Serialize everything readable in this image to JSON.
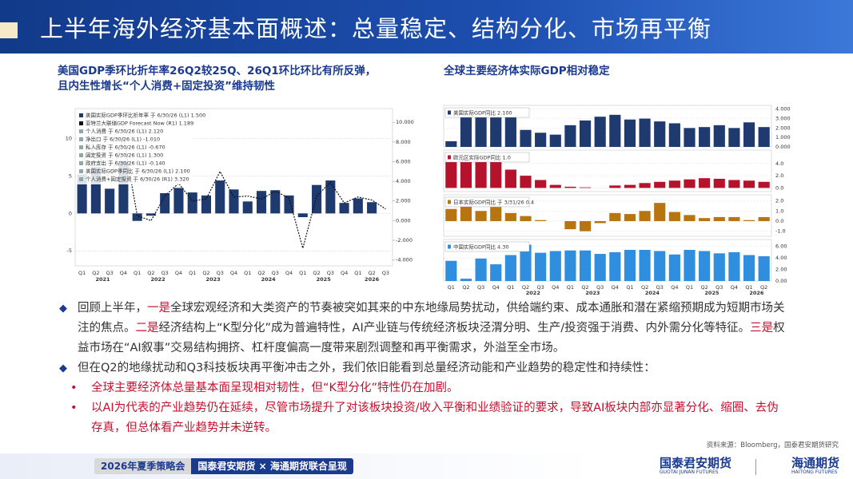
{
  "header": {
    "title": "上半年海外经济基本面概述：总量稳定、结构分化、市场再平衡"
  },
  "left_chart": {
    "type": "bar",
    "title": [
      "美国GDP季环比折年率26Q2较25Q、26Q1环比环比有所反弹，",
      "且内生性增长“个人消费+固定投资”维持韧性"
    ],
    "categories": [
      {
        "year": "2021",
        "quarters": [
          "Q1",
          "Q2",
          "Q3",
          "Q4"
        ]
      },
      {
        "year": "2022",
        "quarters": [
          "Q1",
          "Q2",
          "Q3",
          "Q4"
        ]
      },
      {
        "year": "2023",
        "quarters": [
          "Q1",
          "Q2",
          "Q3",
          "Q4"
        ]
      },
      {
        "year": "2024",
        "quarters": [
          "Q1",
          "Q2",
          "Q3",
          "Q4"
        ]
      },
      {
        "year": "2025",
        "quarters": [
          "Q1",
          "Q2",
          "Q3",
          "Q4"
        ]
      },
      {
        "year": "2026",
        "quarters": [
          "Q1",
          "Q2",
          "Q3"
        ]
      }
    ],
    "series": [
      {
        "name": "美国实际GDP季环比折年率 于 6/30/26 (L1) 1.500",
        "color": "#1f3a6e",
        "values": [
          5.2,
          6.2,
          3.3,
          7.0,
          -1.0,
          -0.3,
          2.7,
          3.4,
          2.8,
          2.4,
          4.4,
          3.2,
          1.6,
          3.0,
          3.1,
          2.4,
          -0.5,
          3.8,
          4.4,
          1.4,
          2.0,
          1.5,
          null
        ]
      },
      {
        "name": "亚特兰大联储GDP Forecast Now (R1) 1.189",
        "color": "#111111",
        "axis": "y2",
        "values": [
          6.0,
          7.5,
          4.0,
          8.5,
          0.5,
          0.0,
          2.5,
          3.8,
          2.0,
          2.2,
          5.0,
          2.4,
          2.5,
          2.2,
          3.0,
          2.3,
          -2.8,
          2.5,
          3.9,
          1.8,
          2.4,
          2.1,
          1.189
        ]
      }
    ],
    "legend_extra": [
      "个人消费 于 6/30/26 (L1) 2.120",
      "净出口 于 6/30/26 (L1) -1.010",
      "私人库存 于 6/30/26 (L1) -0.670",
      "固定投资 于 6/30/26 (L1) 1.300",
      "政府支出 于 6/30/26 (L1) -0.140",
      "美国实际GDP季同比 于 6/30/26 (L1) 2.100",
      "个人消费+固定投资 于 6/30/26 (R1) 3.320"
    ],
    "ylim": [
      -7,
      14
    ],
    "yticks": [
      -5,
      0,
      5,
      10
    ],
    "y2lim": [
      -4.6,
      11.4
    ],
    "y2ticks": [
      {
        "value": -4,
        "label": "-4.000"
      },
      {
        "value": -2,
        "label": "-2.000"
      },
      {
        "value": 0,
        "label": "0.000"
      },
      {
        "value": 2,
        "label": "2.000"
      },
      {
        "value": 4,
        "label": "4.000"
      },
      {
        "value": 6,
        "label": "6.000"
      },
      {
        "value": 8,
        "label": "8.000"
      },
      {
        "value": 10,
        "label": "10.000"
      }
    ],
    "grid": true
  },
  "right_chart": {
    "type": "bar",
    "title": "全球主要经济体实际GDP相对稳定",
    "categories": [
      {
        "year": null,
        "quarters": [
          "Q1",
          "Q2",
          "Q3",
          "Q4"
        ]
      },
      {
        "year": "2022",
        "quarters": [
          "Q1",
          "Q2",
          "Q3",
          "Q4"
        ]
      },
      {
        "year": "2023",
        "quarters": [
          "Q1",
          "Q2",
          "Q3",
          "Q4"
        ]
      },
      {
        "year": "2024",
        "quarters": [
          "Q1",
          "Q2",
          "Q3",
          "Q4"
        ]
      },
      {
        "year": "2025",
        "quarters": [
          "Q1",
          "Q2",
          "Q3",
          "Q4"
        ]
      },
      {
        "year": "2026",
        "quarters": [
          "Q1",
          "Q2"
        ]
      }
    ],
    "panels": [
      {
        "name": "美国实际GDP同比 2.100",
        "color": "#1f3a6e",
        "values": [
          0.6,
          3.6,
          3.4,
          3.6,
          3.5,
          1.8,
          1.5,
          1.3,
          2.3,
          2.8,
          3.2,
          3.4,
          2.9,
          3.0,
          2.7,
          2.5,
          2.0,
          2.1,
          2.3,
          2.0,
          2.6,
          2.1
        ],
        "ylim": [
          0,
          4.4
        ],
        "yticks": [
          {
            "value": 0,
            "label": "0.000"
          },
          {
            "value": 1,
            "label": "1.000"
          },
          {
            "value": 2,
            "label": "2.000"
          },
          {
            "value": 3,
            "label": "3.000"
          },
          {
            "value": 4,
            "label": "4.000"
          }
        ]
      },
      {
        "name": "欧元区实际GDP同比 1.0",
        "color": "#b5122b",
        "values": [
          5.6,
          5.0,
          4.7,
          4.3,
          3.0,
          2.0,
          1.3,
          0.5,
          0.2,
          0.1,
          0.0,
          0.4,
          0.5,
          0.8,
          1.0,
          1.2,
          1.4,
          1.6,
          1.5,
          1.3,
          1.2,
          1.0
        ],
        "ylim": [
          -0.6,
          6.2
        ],
        "yticks": [
          {
            "value": 0,
            "label": "0.0"
          },
          {
            "value": 2,
            "label": "2.0"
          },
          {
            "value": 4,
            "label": "4.0"
          }
        ]
      },
      {
        "name": "日本实际GDP同比 于 3/31/26 0.4",
        "color": "#b87411",
        "values": [
          1.2,
          1.8,
          1.0,
          1.4,
          0.8,
          0.5,
          0.1,
          0.0,
          -0.8,
          -1.0,
          -0.2,
          0.8,
          0.7,
          1.0,
          1.8,
          0.9,
          0.6,
          0.3,
          0.4,
          0.4,
          0.1,
          0.4
        ],
        "ylim": [
          -1.5,
          2.6
        ],
        "yticks": [
          {
            "value": -1,
            "label": "-1.0"
          },
          {
            "value": 0,
            "label": "0.0"
          },
          {
            "value": 1,
            "label": "1.0"
          },
          {
            "value": 2,
            "label": "2.0"
          }
        ]
      },
      {
        "name": "中国实际GDP同比 4.30",
        "color": "#2f8fde",
        "values": [
          3.5,
          0.4,
          3.9,
          2.9,
          4.5,
          6.3,
          4.9,
          5.2,
          5.3,
          5.3,
          4.7,
          5.0,
          5.4,
          5.4,
          5.2,
          4.6,
          5.4,
          5.2,
          4.8,
          5.0,
          4.5,
          4.3
        ],
        "ylim": [
          0,
          7.2
        ],
        "yticks": [
          {
            "value": 0,
            "label": "0.00"
          },
          {
            "value": 2,
            "label": "2.00"
          },
          {
            "value": 4,
            "label": "4.00"
          },
          {
            "value": 6,
            "label": "6.00"
          }
        ]
      }
    ]
  },
  "bullets": [
    {
      "parts": [
        {
          "text": "回顾上半年，",
          "color": "#333333"
        },
        {
          "text": "一是",
          "color": "#c8102e"
        },
        {
          "text": "全球宏观经济和大类资产的节奏被突如其来的中东地缘局势扰动，供给端约束、成本通胀和潜在紧缩预期成为短期市场关注的焦点。",
          "color": "#333333"
        },
        {
          "text": "二是",
          "color": "#c8102e"
        },
        {
          "text": "经济结构上“K型分化”成为普遍特性，AI产业链与传统经济板块泾渭分明、生产/投资强于消费、内外需分化等特征。",
          "color": "#333333"
        },
        {
          "text": "三是",
          "color": "#c8102e"
        },
        {
          "text": "权益市场在“AI叙事”交易结构拥挤、杠杆度偏高一度带来剧烈调整和再平衡需求，外溢至全市场。",
          "color": "#333333"
        }
      ]
    },
    {
      "parts": [
        {
          "text": "但在Q2的地缘扰动和Q3科技板块再平衡冲击之外，我们依旧能看到总量经济动能和产业趋势的稳定性和持续性：",
          "color": "#333333"
        }
      ]
    }
  ],
  "sub_bullets": [
    "全球主要经济体总量基本面呈现相对韧性，但“K型分化”特性仍在加剧。",
    "以AI为代表的产业趋势仍在延续，尽管市场提升了对该板块投资/收入平衡和业绩验证的要求，导致AI板块内部亦显著分化、缩圈、去伪存真，但总体看产业趋势并未逆转。"
  ],
  "source": "资料来源：Bloomberg，国泰君安期货研究",
  "footer": {
    "event": "2026年夏季策略会",
    "presenters": "国泰君安期货 × 海通期货联合呈现",
    "logo1_cn": "国泰君安期货",
    "logo1_en": "GUOTAI JUNAN FUTURES",
    "logo2_cn": "海通期货",
    "logo2_en": "HAITONG FUTURES"
  }
}
